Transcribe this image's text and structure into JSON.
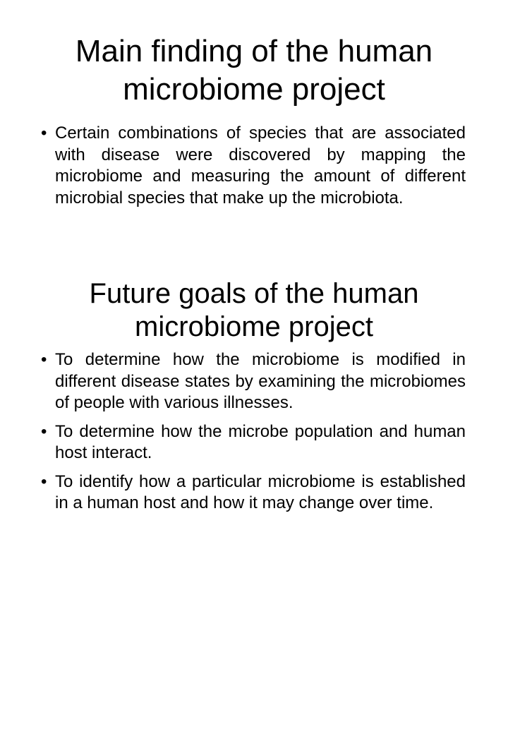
{
  "section_main": {
    "title_line1": "Main finding of the human",
    "title_line2": "microbiome project",
    "bullets": [
      "Certain combinations of species that are associated with disease were discovered by mapping the microbiome and measuring the amount of different microbial species that make up the microbiota."
    ]
  },
  "section_future": {
    "title_line1": "Future goals of the human",
    "title_line2": "microbiome project",
    "bullets": [
      "To determine how the microbiome is modified in different disease states by examining the microbiomes of people with various illnesses.",
      "To determine how the microbe population and human host interact.",
      "To identify how a particular microbiome is established in a human host and how it may change over time."
    ]
  },
  "bullet_glyph": "•"
}
